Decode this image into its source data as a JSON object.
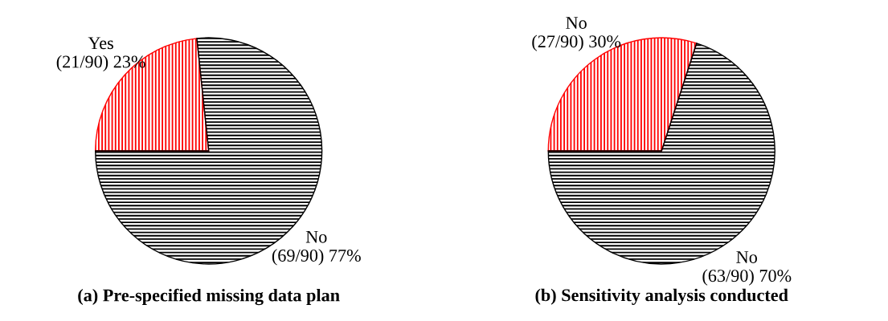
{
  "chart_data": [
    {
      "type": "pie",
      "title": "(a) Pre-specified missing data plan",
      "categories": [
        "Yes",
        "No"
      ],
      "values": [
        21,
        69
      ],
      "colors": [
        "#ff0000",
        "#000000"
      ],
      "value_labels": [
        "(21/90) 23%",
        "(69/90) 77%"
      ]
    },
    {
      "type": "pie",
      "title": "(b) Sensitivity analysis conducted",
      "categories": [
        "No",
        "No"
      ],
      "values": [
        27,
        63
      ],
      "colors": [
        "#ff0000",
        "#000000"
      ],
      "value_labels": [
        "(27/90) 30%",
        "(63/90) 70%"
      ]
    }
  ]
}
